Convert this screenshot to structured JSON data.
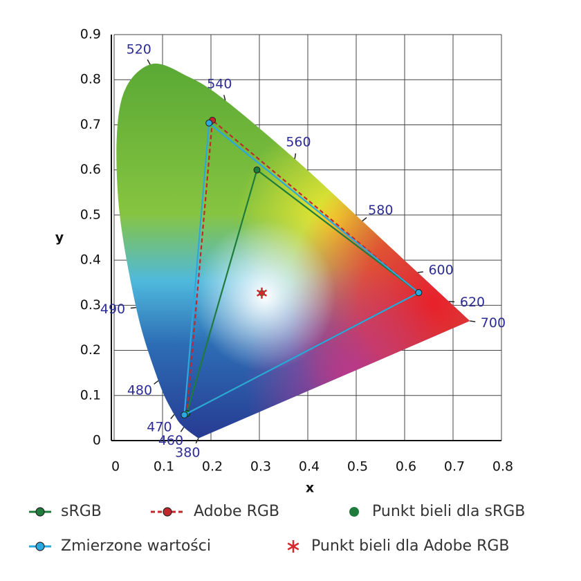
{
  "chart_data": {
    "type": "chromaticity",
    "xlabel": "x",
    "ylabel": "y",
    "xlim": [
      0,
      0.8
    ],
    "ylim": [
      0,
      0.9
    ],
    "xticks": [
      0,
      0.1,
      0.2,
      0.3,
      0.4,
      0.5,
      0.6,
      0.7,
      0.8
    ],
    "yticks": [
      0,
      0.1,
      0.2,
      0.3,
      0.4,
      0.5,
      0.6,
      0.7,
      0.8,
      0.9
    ],
    "grid": true,
    "spectral_locus": {
      "labels": [
        "380",
        "460",
        "470",
        "480",
        "490",
        null,
        null,
        "520",
        null,
        "540",
        "560",
        "580",
        "600",
        "620",
        "700"
      ],
      "x": [
        0.1741,
        0.144,
        0.1241,
        0.0913,
        0.0454,
        0.0082,
        0.0139,
        0.0743,
        0.1547,
        0.2296,
        0.3731,
        0.5125,
        0.627,
        0.6915,
        0.7347
      ],
      "y": [
        0.005,
        0.0297,
        0.0578,
        0.1327,
        0.295,
        0.5384,
        0.7502,
        0.8338,
        0.8059,
        0.7543,
        0.6245,
        0.4866,
        0.3725,
        0.3083,
        0.2653
      ]
    },
    "series": [
      {
        "name": "sRGB",
        "color": "#1e7b3c",
        "line_style": "solid",
        "x": [
          0.629,
          0.295,
          0.15
        ],
        "y": [
          0.328,
          0.6,
          0.06
        ]
      },
      {
        "name": "Adobe RGB",
        "color": "#c1272d",
        "line_style": "dashed",
        "x": [
          0.629,
          0.203,
          0.15
        ],
        "y": [
          0.328,
          0.71,
          0.06
        ]
      },
      {
        "name": "Zmierzone wartości",
        "color": "#2aa8df",
        "line_style": "solid",
        "x": [
          0.629,
          0.196,
          0.145
        ],
        "y": [
          0.328,
          0.704,
          0.057
        ]
      }
    ],
    "white_points": [
      {
        "name": "Punkt bieli dla sRGB",
        "color": "#1e7b3c",
        "marker": "circle",
        "x": 0.305,
        "y": 0.327
      },
      {
        "name": "Punkt bieli dla Adobe RGB",
        "color": "#d4282e",
        "marker": "asterisk",
        "x": 0.305,
        "y": 0.327
      }
    ]
  }
}
